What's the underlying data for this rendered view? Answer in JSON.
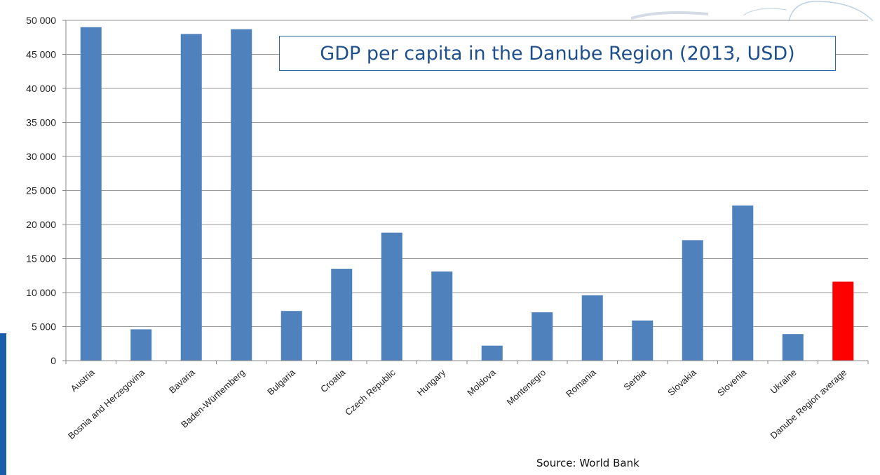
{
  "chart_data": {
    "type": "bar",
    "title": "GDP per capita in the Danube Region (2013, USD)",
    "source": "Source: World Bank",
    "ylim": [
      0,
      50000
    ],
    "yticks": [
      "0",
      "5 000",
      "10 000",
      "15 000",
      "20 000",
      "25 000",
      "30 000",
      "35 000",
      "40 000",
      "45 000",
      "50 000"
    ],
    "grid": true,
    "categories": [
      "Austria",
      "Bosnia and Herzegovina",
      "Bavaria",
      "Baden-Württemberg",
      "Bulgaria",
      "Croatia",
      "Czech Republic",
      "Hungary",
      "Moldova",
      "Montenegro",
      "Romania",
      "Serbia",
      "Slovakia",
      "Slovenia",
      "Ukraine",
      "Danube Region average"
    ],
    "values": [
      49000,
      4600,
      48000,
      48700,
      7300,
      13500,
      18800,
      13100,
      2200,
      7100,
      9600,
      5900,
      17700,
      22800,
      3900,
      11600
    ],
    "colors": {
      "bar": "#4f81bd",
      "highlight": "#ff0000",
      "grid": "#9a9a9a",
      "title": "#1f4f8c",
      "title_border": "#2e6aa6"
    },
    "highlight_category": "Danube Region average"
  }
}
